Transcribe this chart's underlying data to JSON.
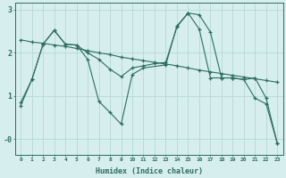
{
  "xlabel": "Humidex (Indice chaleur)",
  "ylabel": "",
  "xlim": [
    -0.5,
    23.5
  ],
  "ylim": [
    -0.35,
    3.15
  ],
  "yticks": [
    "3",
    "2",
    "1",
    "-0"
  ],
  "ytick_values": [
    3.0,
    2.0,
    1.0,
    0.0
  ],
  "xticks": [
    0,
    1,
    2,
    3,
    4,
    5,
    6,
    7,
    8,
    9,
    10,
    11,
    12,
    13,
    14,
    15,
    16,
    17,
    18,
    19,
    20,
    21,
    22,
    23
  ],
  "background_color": "#d6eeee",
  "grid_color": "#b8d8d8",
  "line_color": "#2d6e60",
  "line1_x": [
    0,
    1,
    2,
    3,
    4,
    5,
    6,
    7,
    8,
    9,
    10,
    11,
    12,
    13,
    14,
    15,
    16,
    17,
    18,
    19,
    20,
    21,
    22,
    23
  ],
  "line1_y": [
    0.85,
    1.38,
    2.2,
    2.52,
    2.2,
    2.18,
    2.0,
    1.85,
    1.62,
    1.45,
    1.65,
    1.7,
    1.75,
    1.78,
    2.6,
    2.92,
    2.88,
    2.48,
    1.42,
    1.42,
    1.38,
    1.42,
    0.95,
    -0.1
  ],
  "line2_x": [
    0,
    1,
    2,
    3,
    4,
    5,
    6,
    7,
    8,
    9,
    10,
    11,
    12,
    13,
    14,
    15,
    16,
    17,
    18,
    19,
    20,
    21,
    22,
    23
  ],
  "line2_y": [
    2.3,
    2.25,
    2.22,
    2.18,
    2.15,
    2.1,
    2.05,
    2.0,
    1.96,
    1.9,
    1.86,
    1.82,
    1.78,
    1.74,
    1.7,
    1.65,
    1.6,
    1.56,
    1.52,
    1.48,
    1.44,
    1.4,
    1.36,
    1.32
  ],
  "line3_x": [
    0,
    1,
    2,
    3,
    4,
    5,
    6,
    7,
    8,
    9,
    10,
    11,
    13,
    14,
    15,
    16,
    17,
    18,
    19,
    20,
    21,
    22,
    23
  ],
  "line3_y": [
    0.78,
    1.38,
    2.2,
    2.52,
    2.2,
    2.18,
    1.85,
    0.88,
    0.62,
    0.35,
    1.5,
    1.65,
    1.72,
    2.62,
    2.92,
    2.55,
    1.42,
    1.42,
    1.42,
    1.38,
    0.95,
    0.82,
    -0.1
  ]
}
